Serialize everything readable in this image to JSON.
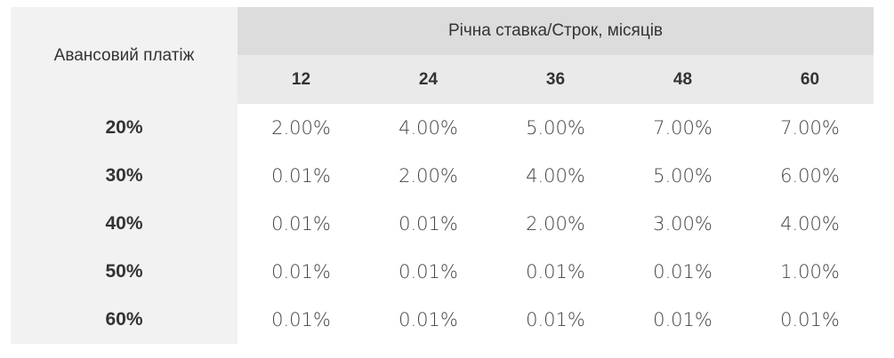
{
  "table": {
    "corner": "Авансовий платіж",
    "header": "Річна ставка/Строк, місяців",
    "columns": [
      "12",
      "24",
      "36",
      "48",
      "60"
    ],
    "rows": [
      {
        "label": "20%",
        "cells": [
          "2.00%",
          "4.00%",
          "5.00%",
          "7.00%",
          "7.00%"
        ]
      },
      {
        "label": "30%",
        "cells": [
          "0.01%",
          "2.00%",
          "4.00%",
          "5.00%",
          "6.00%"
        ]
      },
      {
        "label": "40%",
        "cells": [
          "0.01%",
          "0.01%",
          "2.00%",
          "3.00%",
          "4.00%"
        ]
      },
      {
        "label": "50%",
        "cells": [
          "0.01%",
          "0.01%",
          "0.01%",
          "0.01%",
          "1.00%"
        ]
      },
      {
        "label": "60%",
        "cells": [
          "0.01%",
          "0.01%",
          "0.01%",
          "0.01%",
          "0.01%"
        ]
      }
    ]
  }
}
